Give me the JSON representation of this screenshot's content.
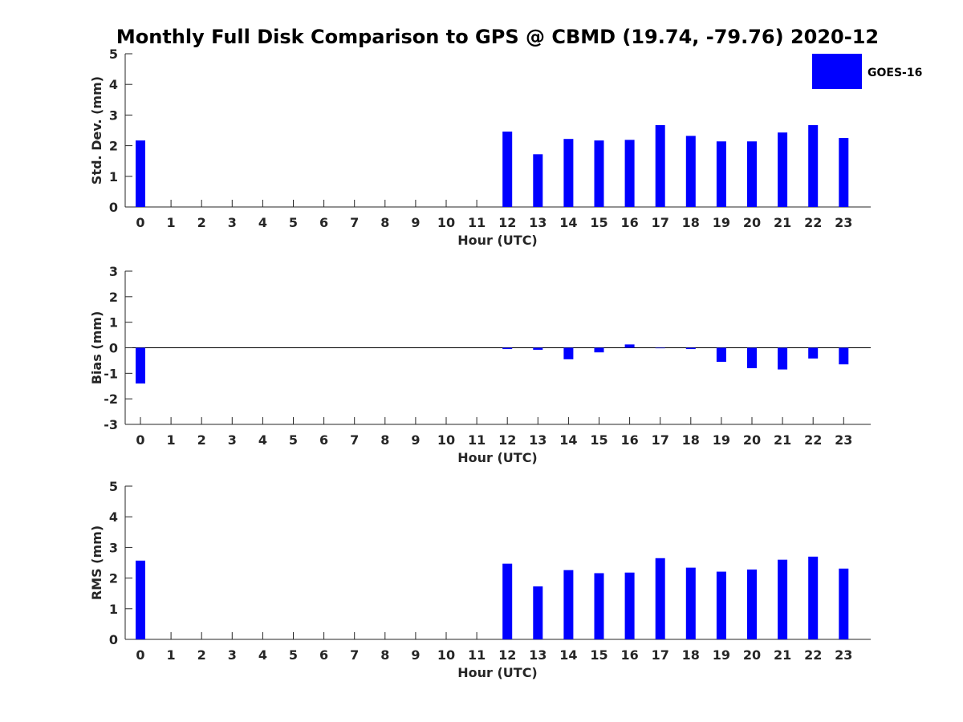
{
  "title": "Monthly Full Disk Comparison to GPS @ CBMD (19.74, -79.76) 2020-12",
  "legend": {
    "label": "GOES-16",
    "color": "#0000ff",
    "placement": "top-right"
  },
  "chart_data": [
    {
      "type": "bar",
      "xlabel": "Hour (UTC)",
      "ylabel": "Std. Dev. (mm)",
      "ylim": [
        0,
        5
      ],
      "yticks": [
        0,
        1,
        2,
        3,
        4,
        5
      ],
      "categories": [
        "0",
        "1",
        "2",
        "3",
        "4",
        "5",
        "6",
        "7",
        "8",
        "9",
        "10",
        "11",
        "12",
        "13",
        "14",
        "15",
        "16",
        "17",
        "18",
        "19",
        "20",
        "21",
        "22",
        "23"
      ],
      "series": [
        {
          "color": "#0000ff",
          "values": [
            2.17,
            null,
            null,
            null,
            null,
            null,
            null,
            null,
            null,
            null,
            null,
            null,
            2.46,
            1.72,
            2.22,
            2.17,
            2.19,
            2.67,
            2.32,
            2.14,
            2.14,
            2.43,
            2.67,
            2.25
          ]
        }
      ]
    },
    {
      "type": "bar",
      "xlabel": "Hour (UTC)",
      "ylabel": "Bias (mm)",
      "ylim": [
        -3,
        3
      ],
      "yticks": [
        -3,
        -2,
        -1,
        0,
        1,
        2,
        3
      ],
      "zero_line": true,
      "categories": [
        "0",
        "1",
        "2",
        "3",
        "4",
        "5",
        "6",
        "7",
        "8",
        "9",
        "10",
        "11",
        "12",
        "13",
        "14",
        "15",
        "16",
        "17",
        "18",
        "19",
        "20",
        "21",
        "22",
        "23"
      ],
      "series": [
        {
          "color": "#0000ff",
          "values": [
            -1.4,
            null,
            null,
            null,
            null,
            null,
            null,
            null,
            null,
            null,
            null,
            null,
            -0.05,
            -0.08,
            -0.45,
            -0.18,
            0.13,
            -0.02,
            -0.05,
            -0.55,
            -0.8,
            -0.85,
            -0.42,
            -0.65
          ]
        }
      ]
    },
    {
      "type": "bar",
      "xlabel": "Hour (UTC)",
      "ylabel": "RMS (mm)",
      "ylim": [
        0,
        5
      ],
      "yticks": [
        0,
        1,
        2,
        3,
        4,
        5
      ],
      "categories": [
        "0",
        "1",
        "2",
        "3",
        "4",
        "5",
        "6",
        "7",
        "8",
        "9",
        "10",
        "11",
        "12",
        "13",
        "14",
        "15",
        "16",
        "17",
        "18",
        "19",
        "20",
        "21",
        "22",
        "23"
      ],
      "series": [
        {
          "color": "#0000ff",
          "values": [
            2.57,
            null,
            null,
            null,
            null,
            null,
            null,
            null,
            null,
            null,
            null,
            null,
            2.47,
            1.73,
            2.26,
            2.16,
            2.18,
            2.65,
            2.34,
            2.21,
            2.28,
            2.6,
            2.7,
            2.31
          ]
        }
      ]
    }
  ]
}
